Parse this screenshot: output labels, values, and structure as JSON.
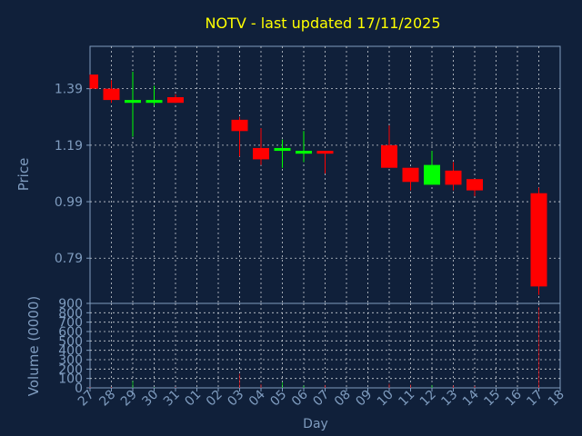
{
  "colors": {
    "background": "#10203a",
    "axis": "#7f9cbf",
    "grid": "#c8cdd4",
    "title": "#ffff00",
    "up": "#00ff00",
    "down": "#ff0000"
  },
  "chart_data": [
    {
      "type": "candlestick",
      "title": "NOTV - last updated 17/11/2025",
      "ylabel": "Price",
      "xlabel": "Day",
      "ylim": [
        0.63,
        1.54
      ],
      "yticks": [
        0.79,
        0.99,
        1.19,
        1.39
      ],
      "ytick_labels": [
        "0.79",
        "0.99",
        "1.19",
        "1.39"
      ],
      "grid": true,
      "x": [
        "27",
        "28",
        "29",
        "30",
        "31",
        "01",
        "02",
        "03",
        "04",
        "05",
        "06",
        "07",
        "08",
        "09",
        "10",
        "11",
        "12",
        "13",
        "14",
        "15",
        "16",
        "17",
        "18"
      ],
      "candles": [
        {
          "day": "27",
          "open": 1.44,
          "close": 1.39,
          "high": 1.44,
          "low": 1.39
        },
        {
          "day": "28",
          "open": 1.39,
          "close": 1.35,
          "high": 1.42,
          "low": 1.34
        },
        {
          "day": "29",
          "open": 1.34,
          "close": 1.35,
          "high": 1.45,
          "low": 1.22
        },
        {
          "day": "30",
          "open": 1.34,
          "close": 1.35,
          "high": 1.4,
          "low": 1.33
        },
        {
          "day": "31",
          "open": 1.36,
          "close": 1.34,
          "high": 1.37,
          "low": 1.34
        },
        {
          "day": "03",
          "open": 1.28,
          "close": 1.24,
          "high": 1.29,
          "low": 1.15
        },
        {
          "day": "04",
          "open": 1.18,
          "close": 1.14,
          "high": 1.25,
          "low": 1.12
        },
        {
          "day": "05",
          "open": 1.17,
          "close": 1.18,
          "high": 1.21,
          "low": 1.11
        },
        {
          "day": "06",
          "open": 1.16,
          "close": 1.17,
          "high": 1.24,
          "low": 1.13
        },
        {
          "day": "07",
          "open": 1.17,
          "close": 1.16,
          "high": 1.17,
          "low": 1.09
        },
        {
          "day": "10",
          "open": 1.19,
          "close": 1.11,
          "high": 1.26,
          "low": 1.11
        },
        {
          "day": "11",
          "open": 1.11,
          "close": 1.06,
          "high": 1.11,
          "low": 1.03
        },
        {
          "day": "12",
          "open": 1.05,
          "close": 1.12,
          "high": 1.17,
          "low": 1.05
        },
        {
          "day": "13",
          "open": 1.1,
          "close": 1.05,
          "high": 1.13,
          "low": 1.03
        },
        {
          "day": "14",
          "open": 1.07,
          "close": 1.03,
          "high": 1.07,
          "low": 1.01
        },
        {
          "day": "17",
          "open": 1.02,
          "close": 0.69,
          "high": 1.04,
          "low": 0.66
        }
      ]
    },
    {
      "type": "bar",
      "ylabel": "Volume (0000)",
      "xlabel": "Day",
      "ylim": [
        0,
        900
      ],
      "yticks": [
        0,
        100,
        200,
        300,
        400,
        500,
        600,
        700,
        800,
        900
      ],
      "ytick_labels": [
        "0",
        "100",
        "200",
        "300",
        "400",
        "500",
        "600",
        "700",
        "800",
        "900"
      ],
      "grid": true,
      "categories": [
        "27",
        "28",
        "29",
        "30",
        "31",
        "03",
        "04",
        "05",
        "06",
        "07",
        "10",
        "11",
        "12",
        "13",
        "14",
        "17"
      ],
      "values": [
        10,
        8,
        75,
        5,
        6,
        150,
        40,
        60,
        25,
        30,
        45,
        35,
        30,
        25,
        20,
        860
      ],
      "directions": [
        "down",
        "down",
        "up",
        "up",
        "down",
        "down",
        "down",
        "up",
        "up",
        "down",
        "down",
        "down",
        "up",
        "down",
        "down",
        "down"
      ]
    }
  ]
}
